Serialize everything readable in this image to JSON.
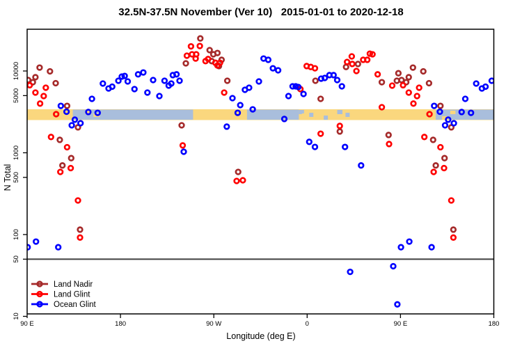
{
  "title": "32.5N-37.5N November (Ver 10)   2015-01-01 to 2020-12-18",
  "axes": {
    "x": {
      "label": "Longitude (deg E)",
      "span_deg": 450,
      "ticks": [
        {
          "pos": 0,
          "label": "90 E"
        },
        {
          "pos": 90,
          "label": "180"
        },
        {
          "pos": 180,
          "label": "90 W"
        },
        {
          "pos": 270,
          "label": "0"
        },
        {
          "pos": 360,
          "label": "90 E"
        },
        {
          "pos": 450,
          "label": "180"
        }
      ]
    },
    "y": {
      "label": "N Total",
      "scale": "log",
      "ticks": [
        10000,
        5000,
        1000,
        500,
        100,
        50,
        10
      ],
      "reference_line_value": 50,
      "reference_line_color": "#3f3f3f"
    }
  },
  "legend": {
    "items": [
      {
        "name": "Land Nadir",
        "color": "#A52A2A"
      },
      {
        "name": "Land Glint",
        "color": "#FF0000"
      },
      {
        "name": "Ocean Glint",
        "color": "#0000FF"
      }
    ]
  },
  "map_strip": {
    "description": "land-ocean map band for 32.5N-37.5N",
    "land_color": "#FAD77E",
    "ocean_color": "#A9BEDC",
    "ocean_segments_deg": [
      [
        44,
        160
      ],
      [
        212,
        262
      ],
      [
        394,
        450
      ]
    ],
    "land_patches_deg": [
      [
        56,
        62
      ],
      [
        64,
        70
      ],
      [
        400,
        406
      ],
      [
        408,
        413
      ],
      [
        265,
        270
      ],
      [
        278,
        284
      ],
      [
        293,
        298
      ]
    ],
    "ocean_patches_deg": [
      [
        262,
        267
      ],
      [
        272,
        276
      ],
      [
        286,
        290
      ],
      [
        299,
        304
      ],
      [
        307,
        311
      ]
    ]
  },
  "chart_data": {
    "type": "scatter",
    "xlabel": "Longitude (deg E)",
    "ylabel": "N Total",
    "x_axis_deg_span": [
      90,
      540
    ],
    "y_range": [
      10,
      32000
    ],
    "note": "points with longitude 90E-180E are plotted twice (axis wraps 450 degrees)",
    "series": [
      {
        "name": "Land Nadir",
        "color": "#A52A2A",
        "points": [
          [
            102,
            11000
          ],
          [
            112,
            9900
          ],
          [
            98,
            8400
          ],
          [
            91,
            7750
          ],
          [
            88,
            9400
          ],
          [
            86.5,
            7600
          ],
          [
            95.5,
            7300
          ],
          [
            117.5,
            7100
          ],
          [
            128.5,
            3750
          ],
          [
            139,
            2050
          ],
          [
            121.5,
            1440
          ],
          [
            132.5,
            860
          ],
          [
            124,
            700
          ],
          [
            141,
            115
          ],
          [
            -121,
            2170
          ],
          [
            -117,
            12400
          ],
          [
            -103,
            25000
          ],
          [
            -94,
            18000
          ],
          [
            -92,
            13200
          ],
          [
            -90.5,
            16000
          ],
          [
            -86.5,
            16600
          ],
          [
            -85,
            11500
          ],
          [
            -82.5,
            13700
          ],
          [
            -77,
            7600
          ],
          [
            37.5,
            11200
          ],
          [
            49,
            12200
          ],
          [
            8,
            7600
          ],
          [
            13,
            4570
          ],
          [
            31.5,
            1820
          ],
          [
            -66.5,
            583
          ],
          [
            72,
            7300
          ],
          [
            78.5,
            1650
          ]
        ]
      },
      {
        "name": "Land Glint",
        "color": "#FF0000",
        "points": [
          [
            92.5,
            6700
          ],
          [
            98,
            5450
          ],
          [
            108,
            6250
          ],
          [
            106,
            4940
          ],
          [
            102.5,
            4000
          ],
          [
            118,
            2970
          ],
          [
            113,
            1560
          ],
          [
            128.5,
            1170
          ],
          [
            122,
            583
          ],
          [
            132,
            650
          ],
          [
            139,
            261
          ],
          [
            141,
            92
          ],
          [
            -112,
            20000
          ],
          [
            -103.5,
            20200
          ],
          [
            -111,
            16000
          ],
          [
            -116,
            15400
          ],
          [
            -107,
            16000
          ],
          [
            -107.5,
            14200
          ],
          [
            -98,
            13200
          ],
          [
            -95.5,
            14000
          ],
          [
            -88.5,
            12600
          ],
          [
            -84,
            12600
          ],
          [
            -86.5,
            11700
          ],
          [
            -80,
            5450
          ],
          [
            -120,
            1230
          ],
          [
            43,
            15100
          ],
          [
            60.5,
            16300
          ],
          [
            63,
            16000
          ],
          [
            58,
            13700
          ],
          [
            38.5,
            12900
          ],
          [
            43.5,
            12200
          ],
          [
            54,
            13700
          ],
          [
            47.5,
            10000
          ],
          [
            -0.5,
            11500
          ],
          [
            3.5,
            11200
          ],
          [
            7.5,
            10800
          ],
          [
            68,
            9100
          ],
          [
            82,
            6620
          ],
          [
            72,
            3610
          ],
          [
            -6.5,
            6010
          ],
          [
            13,
            1710
          ],
          [
            31.5,
            2130
          ],
          [
            79,
            1280
          ],
          [
            -68,
            452
          ],
          [
            -62,
            461
          ]
        ]
      },
      {
        "name": "Ocean Glint",
        "color": "#0000FF",
        "points": [
          [
            122.5,
            3750
          ],
          [
            128,
            3180
          ],
          [
            152.5,
            4570
          ],
          [
            149,
            3150
          ],
          [
            158,
            3080
          ],
          [
            133,
            2170
          ],
          [
            141.5,
            2300
          ],
          [
            163,
            7030
          ],
          [
            168.5,
            6120
          ],
          [
            172,
            6440
          ],
          [
            178,
            7600
          ],
          [
            136,
            2540
          ],
          [
            -178.7,
            8550
          ],
          [
            -176,
            8700
          ],
          [
            -173,
            7450
          ],
          [
            -166.5,
            6010
          ],
          [
            -163,
            9100
          ],
          [
            -158,
            9600
          ],
          [
            -154,
            5450
          ],
          [
            -148.5,
            7750
          ],
          [
            -137.5,
            7600
          ],
          [
            -133.5,
            6620
          ],
          [
            -131,
            7030
          ],
          [
            -129.5,
            8900
          ],
          [
            -126,
            9100
          ],
          [
            -123,
            7600
          ],
          [
            -142.5,
            4940
          ],
          [
            -72,
            4660
          ],
          [
            -64.5,
            3830
          ],
          [
            -60,
            5890
          ],
          [
            -56,
            6250
          ],
          [
            -52.5,
            3400
          ],
          [
            -67,
            3080
          ],
          [
            -46.5,
            7450
          ],
          [
            -42,
            14200
          ],
          [
            -37.5,
            13700
          ],
          [
            -33,
            10800
          ],
          [
            -28,
            10200
          ],
          [
            -77.5,
            2090
          ],
          [
            -119,
            1030
          ],
          [
            -14,
            6500
          ],
          [
            -11,
            6500
          ],
          [
            -8.5,
            6370
          ],
          [
            -3.5,
            5240
          ],
          [
            -18,
            4940
          ],
          [
            13.5,
            8060
          ],
          [
            17,
            8220
          ],
          [
            21.5,
            8900
          ],
          [
            25.5,
            8900
          ],
          [
            29,
            7750
          ],
          [
            33.5,
            6500
          ],
          [
            -22,
            2590
          ],
          [
            2,
            1360
          ],
          [
            7.5,
            1180
          ],
          [
            36.5,
            1180
          ],
          [
            52,
            700
          ],
          [
            41.5,
            35
          ],
          [
            83,
            41
          ],
          [
            87,
            14
          ],
          [
            98.5,
            82
          ],
          [
            90.5,
            70
          ],
          [
            120,
            70
          ]
        ]
      }
    ]
  }
}
